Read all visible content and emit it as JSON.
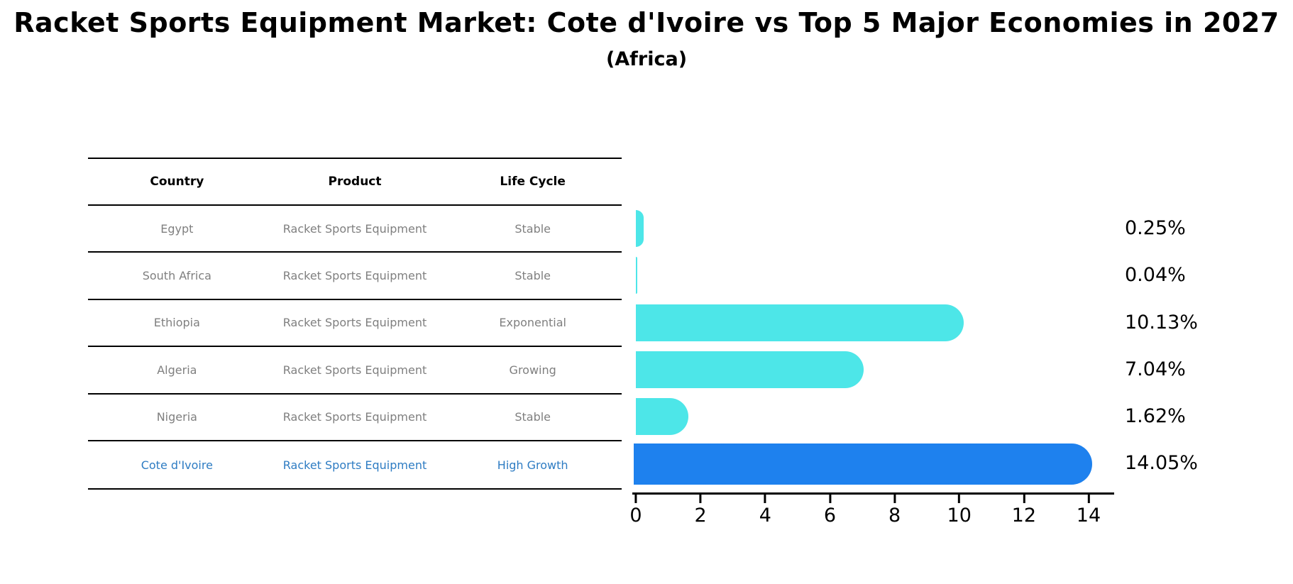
{
  "title": "Racket Sports Equipment Market: Cote d'Ivoire vs Top 5 Major Economies in 2027",
  "subtitle": "(Africa)",
  "table": {
    "headers": [
      "Country",
      "Product",
      "Life Cycle"
    ],
    "rows": [
      {
        "country": "Egypt",
        "product": "Racket Sports Equipment",
        "life_cycle": "Stable",
        "highlight": false
      },
      {
        "country": "South Africa",
        "product": "Racket Sports Equipment",
        "life_cycle": "Stable",
        "highlight": false
      },
      {
        "country": "Ethiopia",
        "product": "Racket Sports Equipment",
        "life_cycle": "Exponential",
        "highlight": false
      },
      {
        "country": "Algeria",
        "product": "Racket Sports Equipment",
        "life_cycle": "Growing",
        "highlight": false
      },
      {
        "country": "Nigeria",
        "product": "Racket Sports Equipment",
        "life_cycle": "Stable",
        "highlight": false
      },
      {
        "country": "Cote d'Ivoire",
        "product": "Racket Sports Equipment",
        "life_cycle": "High Growth",
        "highlight": true
      }
    ]
  },
  "chart_data": {
    "type": "bar",
    "orientation": "horizontal",
    "title": "Racket Sports Equipment Market: Cote d'Ivoire vs Top 5 Major Economies in 2027 (Africa)",
    "categories": [
      "Egypt",
      "South Africa",
      "Ethiopia",
      "Algeria",
      "Nigeria",
      "Cote d'Ivoire"
    ],
    "values": [
      0.25,
      0.04,
      10.13,
      7.04,
      1.62,
      14.05
    ],
    "value_labels": [
      "0.25%",
      "0.04%",
      "10.13%",
      "7.04%",
      "1.62%",
      "14.05%"
    ],
    "xlabel": "",
    "ylabel": "",
    "xlim": [
      0,
      14.79
    ],
    "xticks": [
      0,
      2,
      4,
      6,
      8,
      10,
      12,
      14
    ],
    "grid": false,
    "legend": false,
    "highlight_index": 5,
    "highlight_style": "dashed-outline",
    "colors": {
      "default_bar": "#4DE6E8",
      "highlight_bar": "#1E81EE",
      "highlight_text": "#2E7CC3",
      "cell_text": "#7F7F7F",
      "axis": "#000000"
    }
  }
}
